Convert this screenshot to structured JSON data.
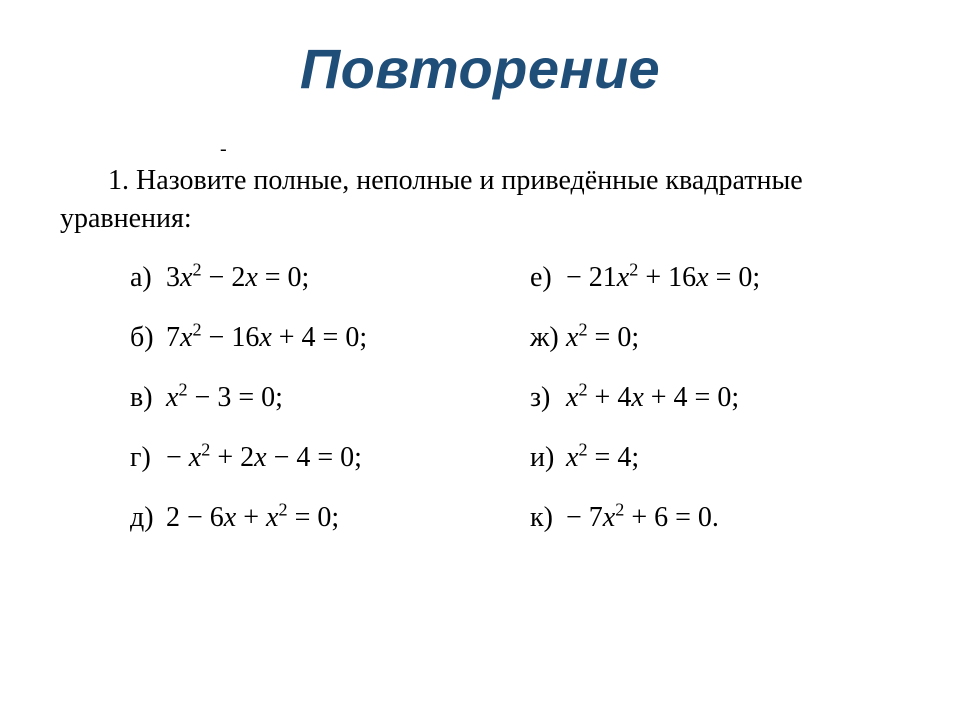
{
  "title": "Повторение",
  "dash": "-",
  "prompt_number": "1.",
  "prompt_text": "Назовите полные, неполные и приведённые квадратные уравнения:",
  "labels": {
    "a": "а)",
    "b": "б)",
    "v": "в)",
    "g": "г)",
    "d": "д)",
    "e": "е)",
    "zh": "ж)",
    "z": "з)",
    "i": "и)",
    "k": "к)"
  },
  "colors": {
    "title": "#1f4e79",
    "text": "#000000",
    "background": "#ffffff"
  },
  "fontsizes": {
    "title": 56,
    "body": 28
  }
}
